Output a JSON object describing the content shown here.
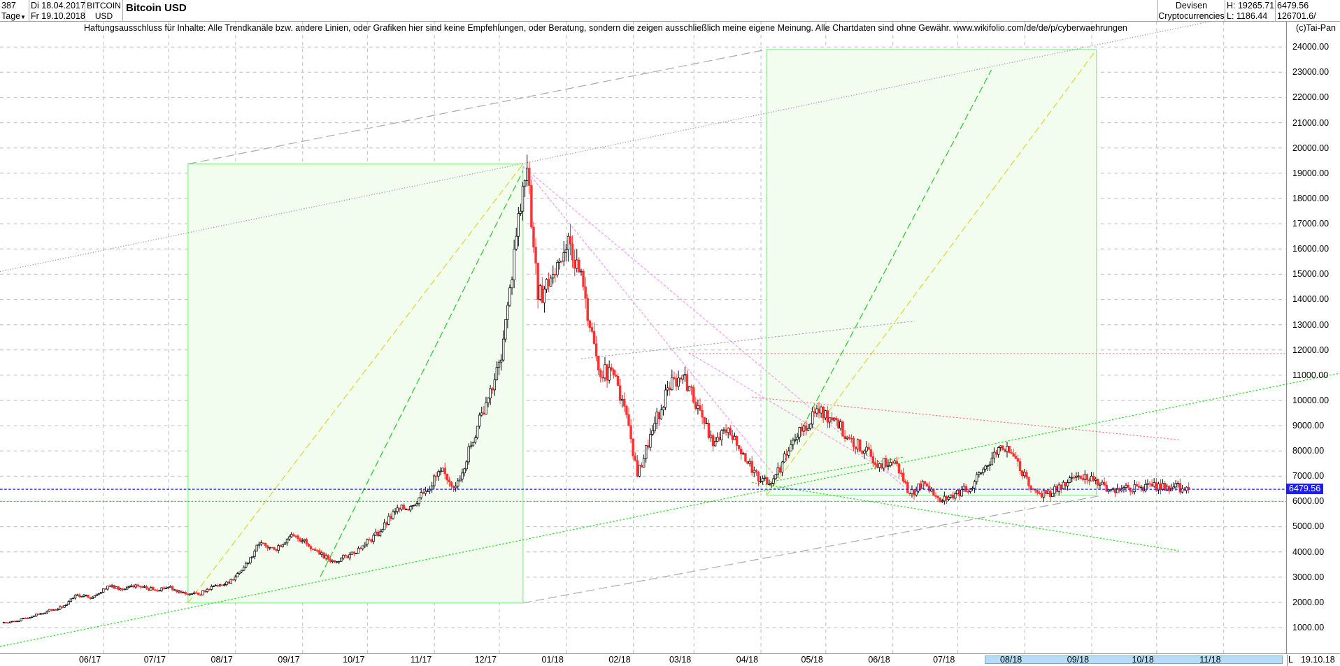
{
  "header": {
    "count": "387",
    "period": "Tage",
    "date_from": "Di 18.04.2017",
    "date_to": "Fr 19.10.2018",
    "symbol_line1": "BITCOIN",
    "symbol_line2": "USD",
    "title": "Bitcoin USD",
    "category1": "Devisen",
    "category2": "Cryptocurrencies",
    "high": "H: 19265.71",
    "low": "L: 1186.44",
    "last": "6479.56",
    "volume": "126701.6/"
  },
  "disclaimer": "Haftungsausschluss für Inhalte: Alle Trendkanäle bzw. andere Linien, oder Grafiken hier sind keine Empfehlungen, oder Beratung, sondern die zeigen ausschließlich meine eigene Meinung. Alle Chartdaten sind ohne Gewähr.  www.wikifolio.com/de/de/p/cyberwaehrungen",
  "copyright": "(c)Tai-Pan",
  "footer": {
    "scroll_marker": "L",
    "end_date": "19.10.18"
  },
  "colors": {
    "up": "#000000",
    "down": "#ff3030",
    "last_price_line": "#1e1ef0",
    "box_fill": "#f2fdef",
    "box_stroke": "#90ee90"
  },
  "chart_data": {
    "type": "candlestick",
    "title": "Bitcoin USD",
    "ylim": [
      0,
      24500
    ],
    "yticks": [
      "1000.00",
      "2000.00",
      "3000.00",
      "4000.00",
      "5000.00",
      "6000.00",
      "7000.00",
      "8000.00",
      "9000.00",
      "10000.00",
      "11000.00",
      "12000.00",
      "13000.00",
      "14000.00",
      "15000.00",
      "16000.00",
      "17000.00",
      "18000.00",
      "19000.00",
      "20000.00",
      "21000.00",
      "22000.00",
      "23000.00",
      "24000.00"
    ],
    "xticks": [
      [
        "06/17",
        "2017-06-01"
      ],
      [
        "07/17",
        "2017-07-01"
      ],
      [
        "08/17",
        "2017-08-01"
      ],
      [
        "09/17",
        "2017-09-01"
      ],
      [
        "10/17",
        "2017-10-01"
      ],
      [
        "11/17",
        "2017-11-01"
      ],
      [
        "12/17",
        "2017-12-01"
      ],
      [
        "01/18",
        "2018-01-01"
      ],
      [
        "02/18",
        "2018-02-01"
      ],
      [
        "03/18",
        "2018-03-01"
      ],
      [
        "04/18",
        "2018-04-01"
      ],
      [
        "05/18",
        "2018-05-01"
      ],
      [
        "06/18",
        "2018-06-01"
      ],
      [
        "07/18",
        "2018-07-01"
      ],
      [
        "08/18",
        "2018-08-01"
      ],
      [
        "09/18",
        "2018-09-01"
      ],
      [
        "10/18",
        "2018-10-01"
      ],
      [
        "11/18",
        "2018-11-01"
      ]
    ],
    "last_price": 6479.56,
    "last_price_label": "6479.56",
    "grid": true,
    "closes": [
      [
        "2017-04-18",
        1200
      ],
      [
        "2017-04-25",
        1260
      ],
      [
        "2017-05-02",
        1450
      ],
      [
        "2017-05-09",
        1650
      ],
      [
        "2017-05-16",
        1800
      ],
      [
        "2017-05-23",
        2300
      ],
      [
        "2017-05-30",
        2200
      ],
      [
        "2017-06-06",
        2650
      ],
      [
        "2017-06-13",
        2500
      ],
      [
        "2017-06-20",
        2650
      ],
      [
        "2017-06-27",
        2500
      ],
      [
        "2017-07-04",
        2600
      ],
      [
        "2017-07-11",
        2400
      ],
      [
        "2017-07-18",
        2300
      ],
      [
        "2017-07-25",
        2650
      ],
      [
        "2017-08-01",
        2750
      ],
      [
        "2017-08-08",
        3400
      ],
      [
        "2017-08-15",
        4300
      ],
      [
        "2017-08-22",
        4100
      ],
      [
        "2017-08-29",
        4600
      ],
      [
        "2017-09-05",
        4500
      ],
      [
        "2017-09-12",
        3900
      ],
      [
        "2017-09-19",
        3600
      ],
      [
        "2017-09-26",
        3900
      ],
      [
        "2017-10-03",
        4300
      ],
      [
        "2017-10-10",
        4800
      ],
      [
        "2017-10-17",
        5600
      ],
      [
        "2017-10-24",
        5800
      ],
      [
        "2017-10-31",
        6400
      ],
      [
        "2017-11-07",
        7200
      ],
      [
        "2017-11-14",
        6600
      ],
      [
        "2017-11-21",
        8200
      ],
      [
        "2017-11-28",
        9900
      ],
      [
        "2017-12-05",
        11600
      ],
      [
        "2017-12-12",
        16500
      ],
      [
        "2017-12-17",
        19200
      ],
      [
        "2017-12-22",
        14000
      ],
      [
        "2017-12-29",
        15000
      ],
      [
        "2018-01-05",
        16500
      ],
      [
        "2018-01-12",
        14500
      ],
      [
        "2018-01-19",
        11200
      ],
      [
        "2018-01-26",
        11000
      ],
      [
        "2018-02-02",
        9000
      ],
      [
        "2018-02-06",
        7000
      ],
      [
        "2018-02-13",
        8800
      ],
      [
        "2018-02-20",
        10500
      ],
      [
        "2018-02-27",
        11000
      ],
      [
        "2018-03-06",
        9800
      ],
      [
        "2018-03-13",
        8200
      ],
      [
        "2018-03-20",
        8900
      ],
      [
        "2018-03-27",
        7900
      ],
      [
        "2018-04-03",
        6800
      ],
      [
        "2018-04-10",
        6900
      ],
      [
        "2018-04-17",
        8000
      ],
      [
        "2018-04-24",
        9000
      ],
      [
        "2018-05-01",
        9500
      ],
      [
        "2018-05-08",
        9300
      ],
      [
        "2018-05-15",
        8500
      ],
      [
        "2018-05-22",
        8000
      ],
      [
        "2018-05-29",
        7500
      ],
      [
        "2018-06-05",
        7600
      ],
      [
        "2018-06-12",
        6300
      ],
      [
        "2018-06-19",
        6700
      ],
      [
        "2018-06-26",
        6000
      ],
      [
        "2018-07-03",
        6300
      ],
      [
        "2018-07-10",
        6500
      ],
      [
        "2018-07-17",
        7400
      ],
      [
        "2018-07-24",
        8200
      ],
      [
        "2018-07-31",
        7700
      ],
      [
        "2018-08-07",
        6500
      ],
      [
        "2018-08-14",
        6300
      ],
      [
        "2018-08-21",
        6500
      ],
      [
        "2018-08-28",
        7000
      ],
      [
        "2018-09-04",
        7000
      ],
      [
        "2018-09-11",
        6400
      ],
      [
        "2018-09-18",
        6500
      ],
      [
        "2018-09-25",
        6600
      ],
      [
        "2018-10-02",
        6600
      ],
      [
        "2018-10-09",
        6600
      ],
      [
        "2018-10-16",
        6500
      ],
      [
        "2018-10-19",
        6480
      ]
    ]
  }
}
